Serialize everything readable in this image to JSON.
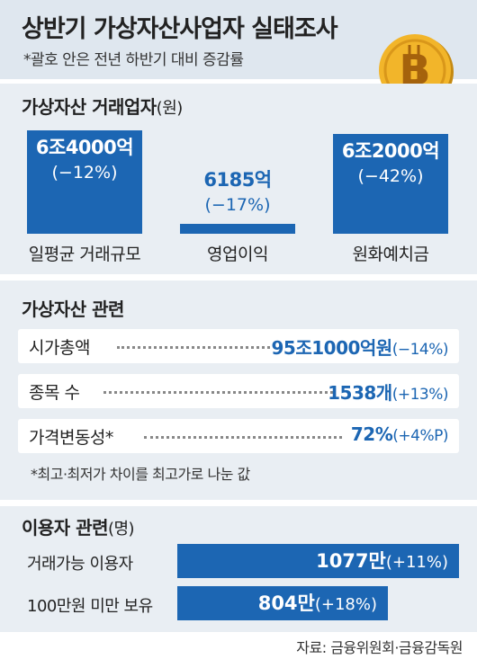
{
  "header": {
    "title": "상반기 가상자산사업자 실태조사",
    "subtitle": "*괄호 안은 전년 하반기 대비 증감률"
  },
  "section_exchange": {
    "title": "가상자산 거래업자",
    "unit": "(원)"
  },
  "chart_data": {
    "type": "bar",
    "title": "가상자산 거래업자",
    "unit": "원",
    "categories": [
      "일평균 거래규모",
      "영업이익",
      "원화예치금"
    ],
    "value_labels": [
      "6조4000억",
      "6185억",
      "6조2000억"
    ],
    "change_labels": [
      "(−12%)",
      "(−17%)",
      "(−42%)"
    ],
    "values_won": [
      6400000000000,
      618500000000,
      6200000000000
    ],
    "changes_pct": [
      -12,
      -17,
      -42
    ],
    "bar_color": "#1c66b3"
  },
  "section_assets": {
    "title": "가상자산 관련",
    "rows": [
      {
        "label": "시가총액",
        "value": "95조1000억원",
        "change": "(−14%)"
      },
      {
        "label": "종목 수",
        "value": "1538개",
        "change": "(+13%)"
      },
      {
        "label": "가격변동성*",
        "value": "72%",
        "change": "(+4%P)"
      }
    ],
    "note": "*최고·최저가 차이를 최고가로 나눈 값"
  },
  "section_users": {
    "title": "이용자 관련",
    "unit": "(명)",
    "rows": [
      {
        "label": "거래가능 이용자",
        "value": "1077만",
        "change": "(+11%)",
        "value_num": 10770000
      },
      {
        "label": "100만원 미만 보유",
        "value": "804만",
        "change": "(+18%)",
        "value_num": 8040000
      }
    ]
  },
  "footer": {
    "source": "자료: 금융위원회·금융감독원"
  },
  "colors": {
    "accent": "#1c66b3",
    "panel": "#e9eef3",
    "header_bg": "#dfe7ef"
  }
}
